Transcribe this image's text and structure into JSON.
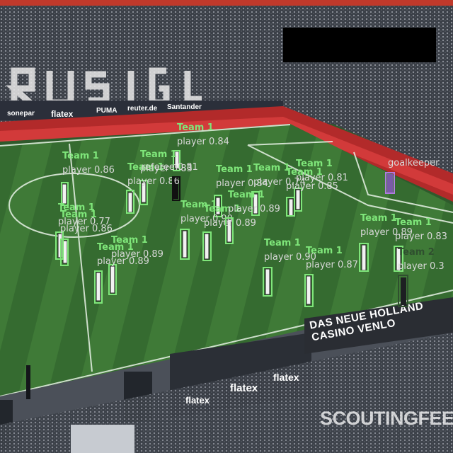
{
  "colors": {
    "team1": "#7fe67a",
    "team2": "#2f4f2f",
    "referee": "#111111",
    "goalkeeper": "#b07adf",
    "label_grey": "#d8d8d8"
  },
  "watermark": "SCOUTINGFEED",
  "ads": {
    "casino_board": "DAS NEUE HOLLAND CASINO VENLO",
    "flatex_1": "flatex",
    "flatex_2": "flatex",
    "flatex_3": "flatex",
    "sonepar": "sonepar",
    "flatex_top": "flatex",
    "puma": "PUMA",
    "reuter": "reuter.de",
    "santander": "Santander"
  },
  "detections": [
    {
      "team": "Team 1",
      "cls": "player 0.86",
      "color": "team1"
    },
    {
      "team": "Team 1",
      "cls": "player 0.83",
      "color": "team1"
    },
    {
      "team": "Team 1",
      "cls": "player 0.84",
      "color": "team1"
    },
    {
      "team": "Team 1",
      "cls": "player 0.86",
      "color": "team1"
    },
    {
      "team": "",
      "cls": "referee 0.81",
      "color": "referee"
    },
    {
      "team": "Team 1",
      "cls": "player 0.84",
      "color": "team1"
    },
    {
      "team": "Team 1",
      "cls": "player 0.81",
      "color": "team1"
    },
    {
      "team": "Team 1",
      "cls": "player 0.74",
      "color": "team1"
    },
    {
      "team": "",
      "cls": "goalkeeper",
      "color": "goalkeeper"
    },
    {
      "team": "Team 1",
      "cls": "player 0.77",
      "color": "team1"
    },
    {
      "team": "Team 1",
      "cls": "player 0.86",
      "color": "team1"
    },
    {
      "team": "Team 1",
      "cls": "player 0.89",
      "color": "team1"
    },
    {
      "team": "Team 1",
      "cls": "player 0.90",
      "color": "team1"
    },
    {
      "team": "Team 1",
      "cls": "player 0.89",
      "color": "team1"
    },
    {
      "team": "Team 1",
      "cls": "player 0.89",
      "color": "team1"
    },
    {
      "team": "Team 1",
      "cls": "player 0.85",
      "color": "team1"
    },
    {
      "team": "Team 1",
      "cls": "player 0.89",
      "color": "team1"
    },
    {
      "team": "Team 1",
      "cls": "player 0.90",
      "color": "team1"
    },
    {
      "team": "Team 1",
      "cls": "player 0.87",
      "color": "team1"
    },
    {
      "team": "Team 1",
      "cls": "player 0.89",
      "color": "team1"
    },
    {
      "team": "Team 1",
      "cls": "player 0.83",
      "color": "team1"
    },
    {
      "team": "Team 2",
      "cls": "player 0.3",
      "color": "team2"
    }
  ]
}
